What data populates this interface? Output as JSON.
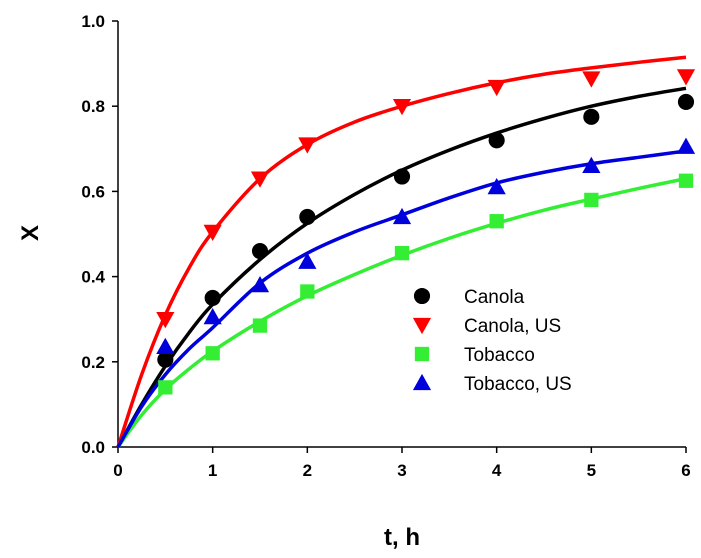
{
  "chart_data": {
    "type": "scatter",
    "title": "",
    "xlabel": "t, h",
    "ylabel": "X",
    "xlim": [
      0,
      6
    ],
    "ylim": [
      0,
      1.0
    ],
    "xticks": [
      "0",
      "1",
      "2",
      "3",
      "4",
      "5",
      "6"
    ],
    "yticks": [
      "0.0",
      "0.2",
      "0.4",
      "0.6",
      "0.8",
      "1.0"
    ],
    "grid": false,
    "legend_position": "center-right",
    "series": [
      {
        "name": "Canola",
        "marker": "circle",
        "color": "#000000",
        "x": [
          0.5,
          1,
          1.5,
          2,
          3,
          4,
          5,
          6
        ],
        "y": [
          0.205,
          0.35,
          0.46,
          0.54,
          0.635,
          0.72,
          0.775,
          0.81
        ],
        "fit": {
          "x": [
            0,
            0.25,
            0.5,
            0.75,
            1,
            1.5,
            2,
            2.5,
            3,
            3.5,
            4,
            4.5,
            5,
            5.5,
            6
          ],
          "y": [
            0,
            0.1,
            0.19,
            0.268,
            0.335,
            0.44,
            0.525,
            0.593,
            0.65,
            0.697,
            0.737,
            0.771,
            0.8,
            0.823,
            0.842
          ]
        }
      },
      {
        "name": "Canola, US",
        "marker": "triangle-down",
        "color": "#ff0000",
        "x": [
          0.5,
          1,
          1.5,
          2,
          3,
          4,
          5,
          6
        ],
        "y": [
          0.3,
          0.505,
          0.63,
          0.71,
          0.8,
          0.845,
          0.865,
          0.87
        ],
        "fit": {
          "x": [
            0,
            0.25,
            0.5,
            0.75,
            1,
            1.5,
            2,
            2.5,
            3,
            3.5,
            4,
            4.5,
            5,
            5.5,
            6
          ],
          "y": [
            0,
            0.17,
            0.31,
            0.42,
            0.505,
            0.63,
            0.71,
            0.763,
            0.8,
            0.83,
            0.855,
            0.875,
            0.89,
            0.903,
            0.915
          ]
        }
      },
      {
        "name": "Tobacco",
        "marker": "square",
        "color": "#33ee33",
        "x": [
          0.5,
          1,
          1.5,
          2,
          3,
          4,
          5,
          6
        ],
        "y": [
          0.14,
          0.22,
          0.285,
          0.365,
          0.455,
          0.53,
          0.58,
          0.625
        ],
        "fit": {
          "x": [
            0,
            0.25,
            0.5,
            0.75,
            1,
            1.5,
            2,
            2.5,
            3,
            3.5,
            4,
            4.5,
            5,
            5.5,
            6
          ],
          "y": [
            0,
            0.075,
            0.135,
            0.183,
            0.225,
            0.295,
            0.355,
            0.405,
            0.45,
            0.49,
            0.525,
            0.556,
            0.582,
            0.607,
            0.63
          ]
        }
      },
      {
        "name": "Tobacco, US",
        "marker": "triangle-up",
        "color": "#0000dd",
        "x": [
          0.5,
          1,
          1.5,
          2,
          3,
          4,
          5,
          6
        ],
        "y": [
          0.235,
          0.305,
          0.38,
          0.435,
          0.54,
          0.61,
          0.66,
          0.705
        ],
        "fit": {
          "x": [
            0,
            0.25,
            0.5,
            0.75,
            1,
            1.5,
            2,
            2.5,
            3,
            3.5,
            4,
            4.5,
            5,
            5.5,
            6
          ],
          "y": [
            0,
            0.095,
            0.17,
            0.23,
            0.28,
            0.385,
            0.455,
            0.505,
            0.545,
            0.585,
            0.62,
            0.645,
            0.665,
            0.68,
            0.695
          ]
        }
      }
    ]
  }
}
